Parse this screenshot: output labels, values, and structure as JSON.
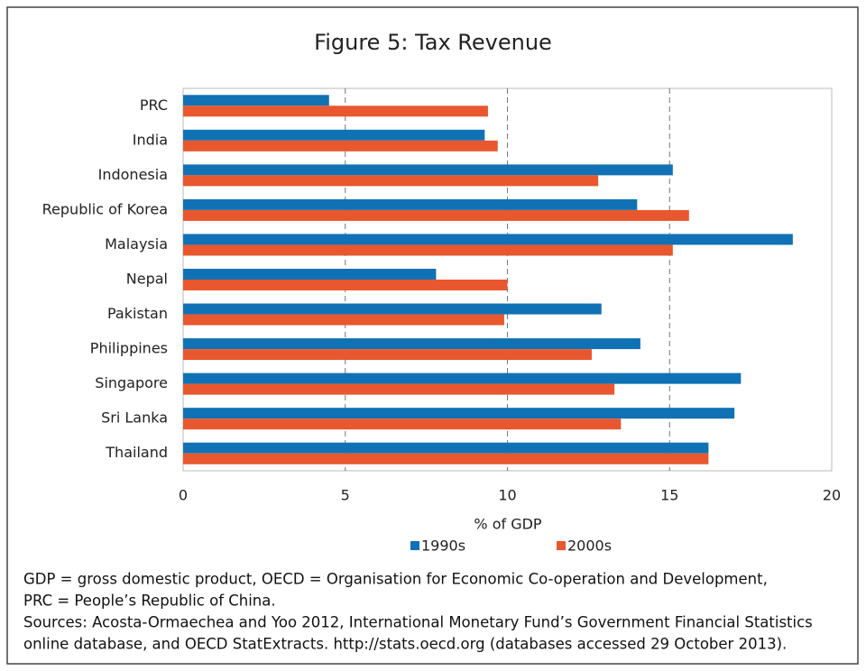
{
  "chart_data": {
    "type": "barh",
    "title": "Figure 5: Tax Revenue",
    "categories": [
      "PRC",
      "India",
      "Indonesia",
      "Republic of Korea",
      "Malaysia",
      "Nepal",
      "Pakistan",
      "Philippines",
      "Singapore",
      "Sri Lanka",
      "Thailand"
    ],
    "series": [
      {
        "name": "1990s",
        "color": "#1072b5",
        "values": [
          4.5,
          9.3,
          15.1,
          14.0,
          18.8,
          7.8,
          12.9,
          14.1,
          17.2,
          17.0,
          16.2
        ]
      },
      {
        "name": "2000s",
        "color": "#e8572e",
        "values": [
          9.4,
          9.7,
          12.8,
          15.6,
          15.1,
          10.0,
          9.9,
          12.6,
          13.3,
          13.5,
          16.2
        ]
      }
    ],
    "xlim": [
      0,
      20
    ],
    "xticks": [
      0,
      5,
      10,
      15,
      20
    ],
    "xlabel": "% of GDP",
    "grid": true,
    "notes": [
      "GDP = gross domestic product, OECD = Organisation for Economic Co-operation and Development,",
      "PRC = People’s Republic of China.",
      "Sources: Acosta-Ormaechea and Yoo 2012, International Monetary Fund’s Government Financial Statistics",
      "online database, and OECD StatExtracts. http://stats.oecd.org (databases accessed 29 October 2013)."
    ]
  }
}
